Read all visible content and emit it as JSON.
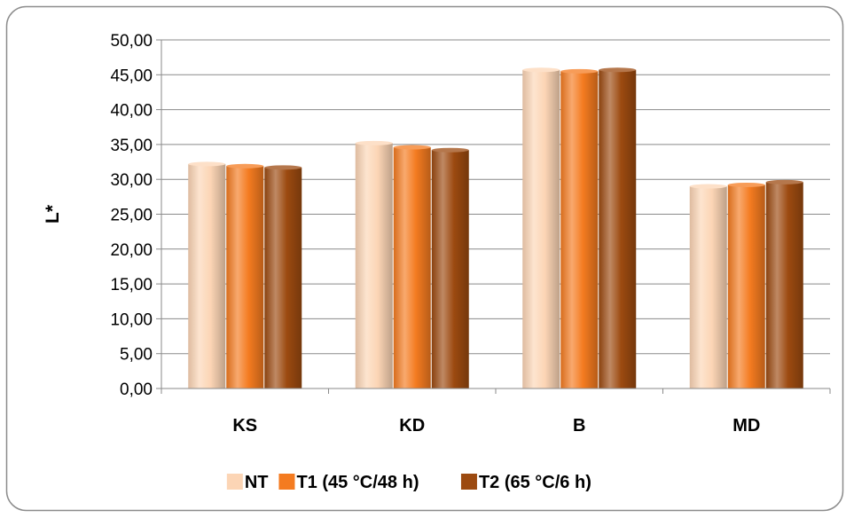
{
  "chart_data": {
    "type": "bar",
    "title": "",
    "xlabel": "",
    "ylabel": "L*",
    "ylim": [
      0,
      50
    ],
    "ytick_step": 5,
    "y_tick_labels": [
      "0,00",
      "5,00",
      "10,00",
      "15,00",
      "20,00",
      "25,00",
      "30,00",
      "35,00",
      "40,00",
      "45,00",
      "50,00"
    ],
    "grid": true,
    "legend_position": "bottom",
    "categories": [
      "KS",
      "KD",
      "B",
      "MD"
    ],
    "series": [
      {
        "name": "NT",
        "color": "#FCD5B5",
        "values": [
          32.2,
          35.2,
          45.7,
          29.0
        ]
      },
      {
        "name": "T1 (45 °C/48 h)",
        "color": "#F47B20",
        "values": [
          31.9,
          34.6,
          45.5,
          29.2
        ]
      },
      {
        "name": "T2 (65 °C/6 h)",
        "color": "#9C4A10",
        "values": [
          31.7,
          34.2,
          45.7,
          29.6
        ]
      }
    ]
  }
}
